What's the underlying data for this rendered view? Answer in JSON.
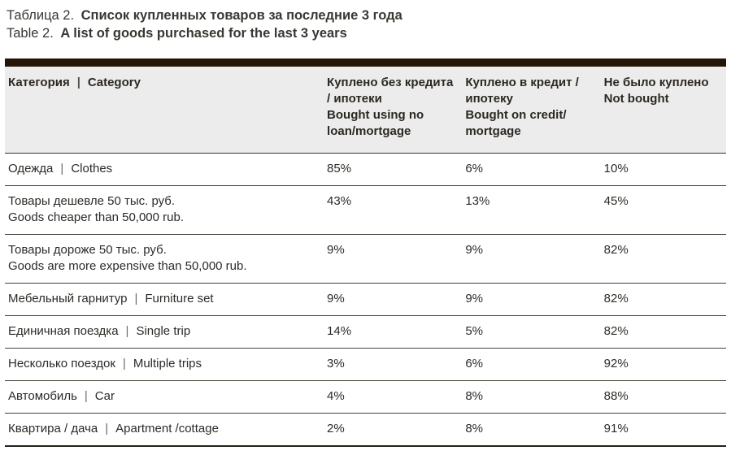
{
  "title": {
    "line1": {
      "prefix": "Таблица 2.",
      "bold": "Список купленных товаров за последние 3 года"
    },
    "line2": {
      "prefix": "Table 2.",
      "bold": "A list of goods purchased for the last 3 years"
    }
  },
  "table": {
    "pipe": "|",
    "header": {
      "category": {
        "ru": "Категория",
        "en": "Category"
      },
      "col_no_loan": {
        "ru": "Куплено без кредита / ипотеки",
        "en": "Bought using no loan/mortgage"
      },
      "col_credit": {
        "ru": "Куплено в кредит / ипотеку",
        "en": "Bought on credit/ mortgage"
      },
      "col_not_bought": {
        "ru": "Не было куплено",
        "en": "Not bought"
      }
    },
    "rows": [
      {
        "ru": "Одежда",
        "en": "Clothes",
        "no_loan": "85%",
        "credit": "6%",
        "not_bought": "10%"
      },
      {
        "ru": "Товары дешевле 50 тыс. руб.",
        "en": "Goods cheaper than 50,000 rub.",
        "no_loan": "43%",
        "credit": "13%",
        "not_bought": "45%"
      },
      {
        "ru": "Товары дороже 50 тыс. руб.",
        "en": "Goods are more expensive than 50,000 rub.",
        "no_loan": "9%",
        "credit": "9%",
        "not_bought": "82%"
      },
      {
        "ru": "Мебельный гарнитур",
        "en": "Furniture set",
        "no_loan": "9%",
        "credit": "9%",
        "not_bought": "82%"
      },
      {
        "ru": "Единичная поездка",
        "en": "Single trip",
        "no_loan": "14%",
        "credit": "5%",
        "not_bought": "82%"
      },
      {
        "ru": "Несколько поездок",
        "en": "Multiple trips",
        "no_loan": "3%",
        "credit": "6%",
        "not_bought": "92%"
      },
      {
        "ru": "Автомобиль",
        "en": "Car",
        "no_loan": "4%",
        "credit": "8%",
        "not_bought": "88%"
      },
      {
        "ru": "Квартира / дача",
        "en": "Apartment /cottage",
        "no_loan": "2%",
        "credit": "8%",
        "not_bought": "91%"
      }
    ]
  },
  "colors": {
    "accent_bar": "#231607",
    "header_bg": "#edecec",
    "row_line": "#454039",
    "bottom_line": "#26201a",
    "text": "#2d2a26"
  }
}
